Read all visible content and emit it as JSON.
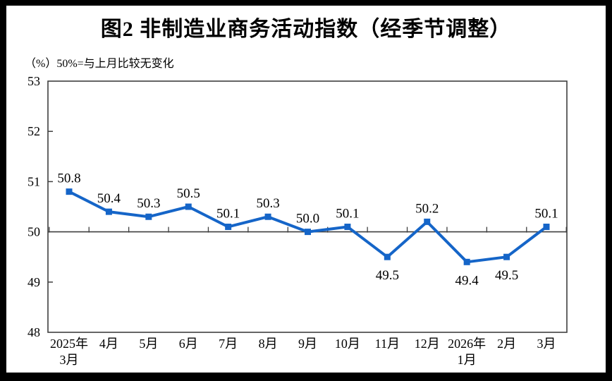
{
  "title": "图2 非制造业商务活动指数（经季节调整）",
  "subtitle": "（%）50%=与上月比较无变化",
  "colors": {
    "line": "#1565c8",
    "axis": "#3f3f3f",
    "text": "#000000",
    "background": "#ffffff",
    "frame": "#000000"
  },
  "chart_data": {
    "type": "line",
    "title": "图2 非制造业商务活动指数（经季节调整）",
    "unit_note": "（%）50%=与上月比较无变化",
    "categories": [
      [
        "2025年",
        "3月"
      ],
      "4月",
      "5月",
      "6月",
      "7月",
      "8月",
      "9月",
      "10月",
      "11月",
      "12月",
      [
        "2026年",
        "1月"
      ],
      "2月",
      "3月"
    ],
    "series": [
      {
        "name": "非制造业商务活动指数",
        "values": [
          50.8,
          50.4,
          50.3,
          50.5,
          50.1,
          50.3,
          50.0,
          50.1,
          49.5,
          50.2,
          49.4,
          49.5,
          50.1
        ]
      }
    ],
    "ylim": [
      48,
      53
    ],
    "yticks": [
      48,
      49,
      50,
      51,
      52,
      53
    ],
    "reference_line": 50,
    "marker": "square",
    "grid": false,
    "legend": "none"
  }
}
